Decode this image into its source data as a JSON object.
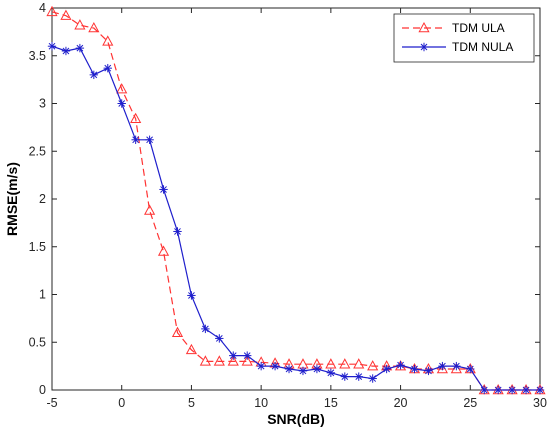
{
  "chart_data": {
    "type": "line",
    "title": "",
    "xlabel": "SNR(dB)",
    "ylabel": "RMSE(m/s)",
    "xlim": [
      -5,
      30
    ],
    "ylim": [
      0,
      4
    ],
    "xticks": [
      -5,
      0,
      5,
      10,
      15,
      20,
      25,
      30
    ],
    "yticks": [
      0,
      0.5,
      1,
      1.5,
      2,
      2.5,
      3,
      3.5,
      4
    ],
    "grid": false,
    "legend_position": "top-right",
    "x": [
      -5,
      -4,
      -3,
      -2,
      -1,
      0,
      1,
      2,
      3,
      4,
      5,
      6,
      7,
      8,
      9,
      10,
      11,
      12,
      13,
      14,
      15,
      16,
      17,
      18,
      19,
      20,
      21,
      22,
      23,
      24,
      25,
      26,
      27,
      28,
      29,
      30
    ],
    "series": [
      {
        "name": "TDM ULA",
        "color": "#ff3333",
        "line_style": "dashed",
        "marker": "triangle",
        "values": [
          3.96,
          3.92,
          3.82,
          3.79,
          3.65,
          3.15,
          2.84,
          1.88,
          1.45,
          0.6,
          0.42,
          0.3,
          0.3,
          0.3,
          0.3,
          0.29,
          0.28,
          0.27,
          0.27,
          0.27,
          0.27,
          0.27,
          0.27,
          0.25,
          0.25,
          0.25,
          0.22,
          0.22,
          0.22,
          0.22,
          0.22,
          0,
          0,
          0,
          0,
          0
        ]
      },
      {
        "name": "TDM NULA",
        "color": "#1f1fcc",
        "line_style": "solid",
        "marker": "asterisk",
        "values": [
          3.6,
          3.55,
          3.58,
          3.3,
          3.37,
          3.0,
          2.62,
          2.62,
          2.1,
          1.66,
          0.99,
          0.64,
          0.54,
          0.36,
          0.36,
          0.25,
          0.25,
          0.22,
          0.2,
          0.22,
          0.18,
          0.14,
          0.14,
          0.12,
          0.22,
          0.26,
          0.22,
          0.2,
          0.25,
          0.25,
          0.22,
          0,
          0,
          0,
          0,
          0
        ]
      }
    ]
  }
}
